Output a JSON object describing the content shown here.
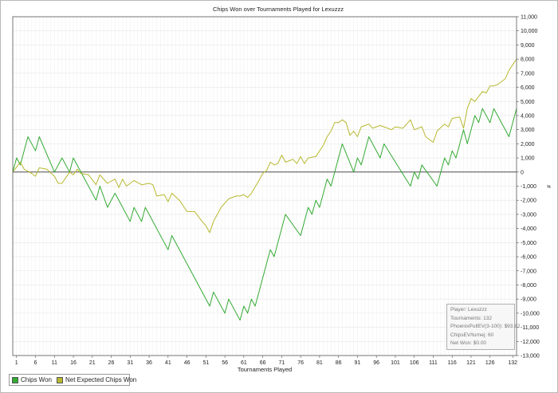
{
  "chart_data": {
    "type": "line",
    "title": "Chips Won over Tournaments Played for  Lexuzzz",
    "xlabel": "Tournaments Played",
    "ylabel": "#",
    "xlim": [
      0,
      133
    ],
    "ylim": [
      -13000,
      11000
    ],
    "x_ticks": [
      1,
      6,
      11,
      16,
      21,
      26,
      31,
      36,
      41,
      46,
      51,
      56,
      61,
      66,
      71,
      76,
      81,
      86,
      91,
      96,
      101,
      106,
      111,
      116,
      121,
      126,
      132
    ],
    "y_ticks": [
      11000,
      10000,
      9000,
      8000,
      7000,
      6000,
      5000,
      4000,
      3000,
      2000,
      1000,
      0,
      -1000,
      -2000,
      -3000,
      -4000,
      -5000,
      -6000,
      -7000,
      -8000,
      -9000,
      -10000,
      -11000,
      -12000,
      -13000
    ],
    "y_tick_labels": [
      "11,000",
      "10,000",
      "9,000",
      "8,000",
      "7,000",
      "6,000",
      "5,000",
      "4,000",
      "3,000",
      "2,000",
      "1,000",
      "0",
      "-1,000",
      "-2,000",
      "-3,000",
      "-4,000",
      "-5,000",
      "-6,000",
      "-7,000",
      "-8,000",
      "-9,000",
      "-10,000",
      "-11,000",
      "-12,000",
      "-13,000"
    ],
    "grid": true,
    "legend_position": "bottom-left",
    "series": [
      {
        "name": "Chips Won",
        "color": "#33aa33",
        "points": [
          [
            0,
            0
          ],
          [
            1,
            1000
          ],
          [
            2,
            500
          ],
          [
            4,
            2500
          ],
          [
            6,
            1500
          ],
          [
            7,
            2500
          ],
          [
            11,
            0
          ],
          [
            13,
            1000
          ],
          [
            15,
            0
          ],
          [
            16,
            1000
          ],
          [
            20,
            -1000
          ],
          [
            22,
            -2000
          ],
          [
            23,
            -1000
          ],
          [
            25,
            -2500
          ],
          [
            27,
            -1500
          ],
          [
            31,
            -3500
          ],
          [
            32,
            -2500
          ],
          [
            34,
            -3500
          ],
          [
            35,
            -2500
          ],
          [
            41,
            -5500
          ],
          [
            42,
            -4500
          ],
          [
            52,
            -9500
          ],
          [
            53,
            -8500
          ],
          [
            56,
            -10000
          ],
          [
            57,
            -9000
          ],
          [
            60,
            -10500
          ],
          [
            61,
            -9500
          ],
          [
            62,
            -10000
          ],
          [
            63,
            -9000
          ],
          [
            64,
            -9500
          ],
          [
            68,
            -5500
          ],
          [
            69,
            -6000
          ],
          [
            72,
            -3000
          ],
          [
            76,
            -4500
          ],
          [
            78,
            -2500
          ],
          [
            79,
            -3000
          ],
          [
            80,
            -2000
          ],
          [
            81,
            -2500
          ],
          [
            83,
            -500
          ],
          [
            84,
            -1000
          ],
          [
            87,
            2000
          ],
          [
            90,
            0
          ],
          [
            91,
            1000
          ],
          [
            92,
            500
          ],
          [
            94,
            2500
          ],
          [
            97,
            1000
          ],
          [
            98,
            2000
          ],
          [
            105,
            -1000
          ],
          [
            106,
            0
          ],
          [
            107,
            -500
          ],
          [
            108,
            500
          ],
          [
            112,
            -1000
          ],
          [
            114,
            1000
          ],
          [
            115,
            500
          ],
          [
            116,
            1500
          ],
          [
            117,
            1000
          ],
          [
            119,
            3000
          ],
          [
            120,
            2000
          ],
          [
            122,
            4000
          ],
          [
            123,
            3500
          ],
          [
            124,
            4500
          ],
          [
            126,
            3500
          ],
          [
            127,
            4500
          ],
          [
            131,
            2500
          ],
          [
            133,
            4500
          ]
        ]
      },
      {
        "name": "Net Expected Chips Won",
        "color": "#b8b830",
        "points": [
          [
            0,
            0
          ],
          [
            2,
            700
          ],
          [
            3,
            200
          ],
          [
            5,
            -100
          ],
          [
            6,
            -300
          ],
          [
            7,
            300
          ],
          [
            9,
            200
          ],
          [
            11,
            -300
          ],
          [
            12,
            -800
          ],
          [
            13,
            -800
          ],
          [
            15,
            0
          ],
          [
            16,
            -200
          ],
          [
            17,
            200
          ],
          [
            18,
            -100
          ],
          [
            20,
            -200
          ],
          [
            22,
            -900
          ],
          [
            23,
            -200
          ],
          [
            25,
            -800
          ],
          [
            27,
            -500
          ],
          [
            28,
            -1100
          ],
          [
            29,
            -500
          ],
          [
            30,
            -1000
          ],
          [
            32,
            -600
          ],
          [
            34,
            -900
          ],
          [
            36,
            -800
          ],
          [
            37,
            -900
          ],
          [
            38,
            -1700
          ],
          [
            40,
            -1600
          ],
          [
            41,
            -2100
          ],
          [
            42,
            -1500
          ],
          [
            44,
            -2000
          ],
          [
            46,
            -2800
          ],
          [
            48,
            -2800
          ],
          [
            50,
            -3500
          ],
          [
            51,
            -3800
          ],
          [
            52,
            -4300
          ],
          [
            53,
            -3500
          ],
          [
            55,
            -2500
          ],
          [
            57,
            -1900
          ],
          [
            59,
            -1700
          ],
          [
            60,
            -1700
          ],
          [
            61,
            -1600
          ],
          [
            62,
            -1800
          ],
          [
            63,
            -1500
          ],
          [
            65,
            -600
          ],
          [
            66,
            -100
          ],
          [
            67,
            100
          ],
          [
            68,
            700
          ],
          [
            69,
            500
          ],
          [
            70,
            600
          ],
          [
            71,
            1200
          ],
          [
            72,
            700
          ],
          [
            74,
            900
          ],
          [
            75,
            600
          ],
          [
            76,
            1100
          ],
          [
            77,
            600
          ],
          [
            78,
            1000
          ],
          [
            80,
            1100
          ],
          [
            82,
            1900
          ],
          [
            83,
            2500
          ],
          [
            84,
            2900
          ],
          [
            85,
            3500
          ],
          [
            86,
            3500
          ],
          [
            87,
            3700
          ],
          [
            88,
            3500
          ],
          [
            89,
            2600
          ],
          [
            90,
            2900
          ],
          [
            91,
            2500
          ],
          [
            92,
            3200
          ],
          [
            94,
            3400
          ],
          [
            95,
            3100
          ],
          [
            97,
            3300
          ],
          [
            99,
            3100
          ],
          [
            100,
            3000
          ],
          [
            101,
            3200
          ],
          [
            103,
            3100
          ],
          [
            105,
            3700
          ],
          [
            106,
            3000
          ],
          [
            108,
            3200
          ],
          [
            109,
            2500
          ],
          [
            111,
            2100
          ],
          [
            112,
            2900
          ],
          [
            114,
            3400
          ],
          [
            115,
            3200
          ],
          [
            116,
            3800
          ],
          [
            118,
            3900
          ],
          [
            119,
            3100
          ],
          [
            120,
            4500
          ],
          [
            121,
            5200
          ],
          [
            122,
            5000
          ],
          [
            124,
            5700
          ],
          [
            125,
            5600
          ],
          [
            126,
            6100
          ],
          [
            127,
            6100
          ],
          [
            128,
            6200
          ],
          [
            129,
            6400
          ],
          [
            130,
            6600
          ],
          [
            131,
            7200
          ],
          [
            132,
            7600
          ],
          [
            133,
            8000
          ]
        ]
      }
    ]
  },
  "info": {
    "lines": [
      "Player: Lexuzzz",
      "Tournaments: 132",
      "PhoenixPullEV(3-100): $93.62",
      "ChipsEV/turnej: 60",
      "Net Won: $0.00"
    ]
  },
  "legend": {
    "items": [
      {
        "label": "Chips Won",
        "color": "#33aa33"
      },
      {
        "label": "Net Expected Chips Won",
        "color": "#b8b830"
      }
    ]
  }
}
